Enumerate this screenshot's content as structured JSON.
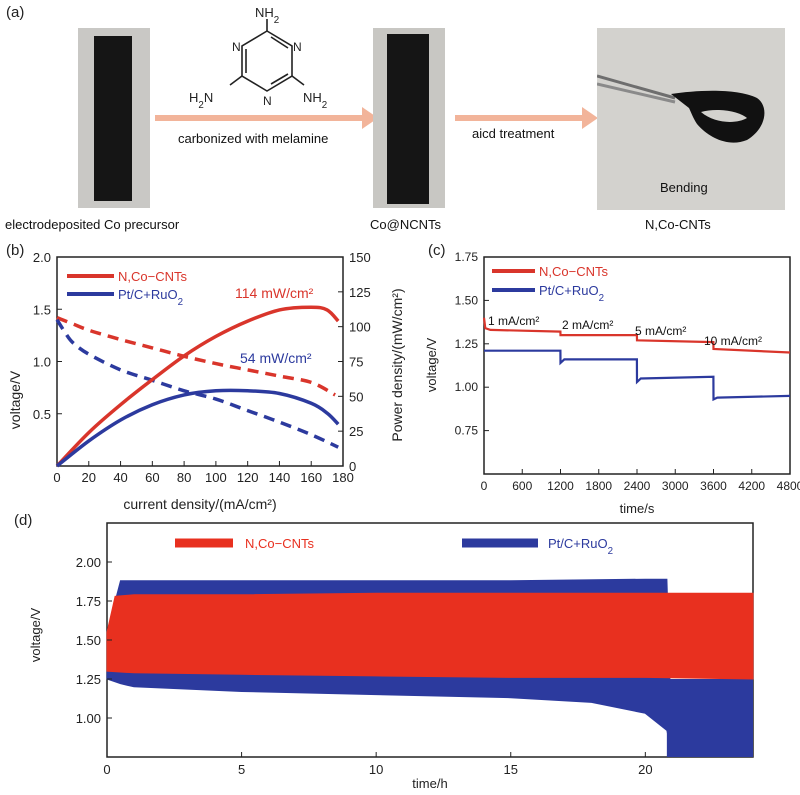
{
  "panel_a": {
    "letter": "(a)",
    "caption_precursor": "electrodeposited Co precursor",
    "arrow1_label": "carbonized with melamine",
    "caption_mid": "Co@NCNTs",
    "arrow2_label": "aicd treatment",
    "bending_label": "Bending",
    "caption_final": "N,Co-CNTs",
    "melamine": {
      "nh2_top": "NH2",
      "nh2_left": "H2N",
      "nh2_right": "NH2",
      "ring_n": "N"
    }
  },
  "chart_data": [
    {
      "panel": "(b)",
      "type": "line",
      "xlabel": "current density/(mA/cm²)",
      "ylabel_left": "voltage/V",
      "ylabel_right": "Power density/(mW/cm²)",
      "xlim": [
        0,
        180
      ],
      "ylim_left": [
        0,
        2.0
      ],
      "ylim_right": [
        0,
        150
      ],
      "x_ticks": [
        0,
        20,
        40,
        60,
        80,
        100,
        120,
        140,
        160,
        180
      ],
      "y_ticks_left": [
        "0.5",
        "1.0",
        "1.5",
        "2.0"
      ],
      "y_ticks_right": [
        "0",
        "25",
        "50",
        "75",
        "100",
        "125",
        "150"
      ],
      "legend": [
        "N,Co−CNTs",
        "Pt/C+RuO2"
      ],
      "legend_position": "top-left",
      "annotations": [
        "114 mW/cm²",
        "54 mW/cm²"
      ],
      "series": [
        {
          "name": "N,Co−CNTs",
          "kind": "voltage (dashed)",
          "axis": "left",
          "color": "#d9352b",
          "x": [
            0,
            10,
            20,
            40,
            60,
            80,
            100,
            120,
            140,
            160,
            175
          ],
          "y": [
            1.42,
            1.36,
            1.3,
            1.21,
            1.13,
            1.05,
            0.98,
            0.92,
            0.86,
            0.8,
            0.68
          ]
        },
        {
          "name": "Pt/C+RuO2",
          "kind": "voltage (dashed)",
          "axis": "left",
          "color": "#2c3a9e",
          "x": [
            0,
            5,
            10,
            20,
            40,
            60,
            80,
            100,
            120,
            140,
            160,
            177
          ],
          "y": [
            1.4,
            1.28,
            1.18,
            1.07,
            0.92,
            0.82,
            0.72,
            0.64,
            0.53,
            0.42,
            0.3,
            0.18
          ]
        },
        {
          "name": "N,Co−CNTs",
          "kind": "power (solid)",
          "axis": "right",
          "color": "#d9352b",
          "x": [
            0,
            20,
            40,
            60,
            80,
            100,
            120,
            140,
            160,
            170,
            177
          ],
          "y": [
            0,
            24,
            44,
            62,
            79,
            93,
            104,
            112,
            114,
            112,
            104
          ]
        },
        {
          "name": "Pt/C+RuO2",
          "kind": "power (solid)",
          "axis": "right",
          "color": "#2c3a9e",
          "x": [
            0,
            20,
            40,
            60,
            80,
            100,
            120,
            140,
            160,
            170,
            177
          ],
          "y": [
            0,
            18,
            33,
            44,
            51,
            54,
            54,
            52,
            45,
            38,
            30
          ]
        }
      ]
    },
    {
      "panel": "(c)",
      "type": "line",
      "xlabel": "time/s",
      "ylabel": "voltage/V",
      "xlim": [
        0,
        4800
      ],
      "ylim": [
        0.5,
        1.75
      ],
      "x_ticks": [
        0,
        600,
        1200,
        1800,
        2400,
        3000,
        3600,
        4200,
        4800
      ],
      "y_ticks": [
        "0.75",
        "1.00",
        "1.25",
        "1.50",
        "1.75"
      ],
      "legend": [
        "N,Co−CNTs",
        "Pt/C+RuO2"
      ],
      "legend_position": "top-left",
      "annotations": [
        "1 mA/cm²",
        "2 mA/cm²",
        "5 mA/cm²",
        "10 mA/cm²"
      ],
      "series": [
        {
          "name": "N,Co−CNTs",
          "color": "#d9352b",
          "x": [
            0,
            20,
            100,
            1199,
            1200,
            2399,
            2400,
            3599,
            3600,
            4800
          ],
          "y": [
            1.4,
            1.34,
            1.33,
            1.32,
            1.3,
            1.3,
            1.27,
            1.26,
            1.22,
            1.2
          ]
        },
        {
          "name": "Pt/C+RuO2",
          "color": "#2c3a9e",
          "x": [
            0,
            1199,
            1200,
            1260,
            2399,
            2400,
            2460,
            3599,
            3600,
            3660,
            4800
          ],
          "y": [
            1.21,
            1.21,
            1.14,
            1.16,
            1.16,
            1.03,
            1.05,
            1.06,
            0.93,
            0.94,
            0.95
          ]
        }
      ]
    },
    {
      "panel": "(d)",
      "type": "area",
      "xlabel": "time/h",
      "ylabel": "voltage/V",
      "xlim": [
        0,
        24
      ],
      "ylim": [
        0.75,
        2.25
      ],
      "x_ticks": [
        0,
        5,
        10,
        15,
        20
      ],
      "y_ticks": [
        "1.00",
        "1.25",
        "1.50",
        "1.75",
        "2.00"
      ],
      "legend": [
        "N,Co−CNTs",
        "Pt/C+RuO2"
      ],
      "legend_position": "top",
      "series": [
        {
          "name": "Pt/C+RuO2",
          "color": "#2c3a9e",
          "upper": {
            "x": [
              0,
              0.5,
              1,
              5,
              10,
              15,
              20,
              20.8
            ],
            "y": [
              1.55,
              1.88,
              1.88,
              1.88,
              1.88,
              1.88,
              1.89,
              1.89
            ]
          },
          "lower": {
            "x": [
              0,
              0.5,
              1,
              5,
              10,
              15,
              18,
              20,
              20.8,
              21
            ],
            "y": [
              1.25,
              1.22,
              1.2,
              1.17,
              1.15,
              1.13,
              1.1,
              1.03,
              0.92,
              0.75
            ]
          },
          "after_failure": {
            "x": [
              20.8,
              24
            ],
            "y_low": 0.75,
            "y_high": 1.25
          }
        },
        {
          "name": "N,Co−CNTs",
          "color": "#e8301f",
          "upper": {
            "x": [
              0,
              0.3,
              1,
              5,
              10,
              15,
              20,
              24
            ],
            "y": [
              1.55,
              1.78,
              1.79,
              1.79,
              1.8,
              1.8,
              1.8,
              1.8
            ]
          },
          "lower": {
            "x": [
              0,
              1,
              5,
              10,
              15,
              20,
              24
            ],
            "y": [
              1.3,
              1.29,
              1.28,
              1.27,
              1.26,
              1.26,
              1.25
            ]
          }
        }
      ]
    }
  ]
}
